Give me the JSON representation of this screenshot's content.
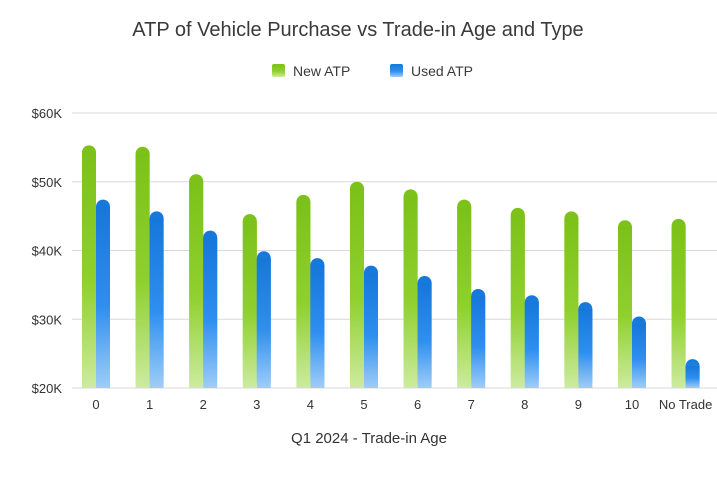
{
  "chart_data": {
    "type": "bar",
    "title": "ATP of Vehicle Purchase vs Trade-in Age and Type",
    "xlabel": "Q1 2024 - Trade-in Age",
    "ylabel": "",
    "categories": [
      "0",
      "1",
      "2",
      "3",
      "4",
      "5",
      "6",
      "7",
      "8",
      "9",
      "10",
      "No Trade"
    ],
    "series": [
      {
        "name": "New ATP",
        "color": "#7dc41f",
        "values": [
          55300,
          55100,
          51100,
          45300,
          48100,
          50000,
          48900,
          47400,
          46200,
          45700,
          44400,
          44600
        ]
      },
      {
        "name": "Used ATP",
        "color": "#1a7fe0",
        "values": [
          47400,
          45700,
          42900,
          39900,
          38900,
          37800,
          36300,
          34400,
          33500,
          32500,
          30400,
          24200
        ]
      }
    ],
    "ylim": [
      20000,
      60000
    ],
    "yticks": [
      20000,
      30000,
      40000,
      50000,
      60000
    ],
    "ytick_labels": [
      "$20K",
      "$30K",
      "$40K",
      "$50K",
      "$60K"
    ],
    "grid": true,
    "legend_position": "top-center"
  }
}
